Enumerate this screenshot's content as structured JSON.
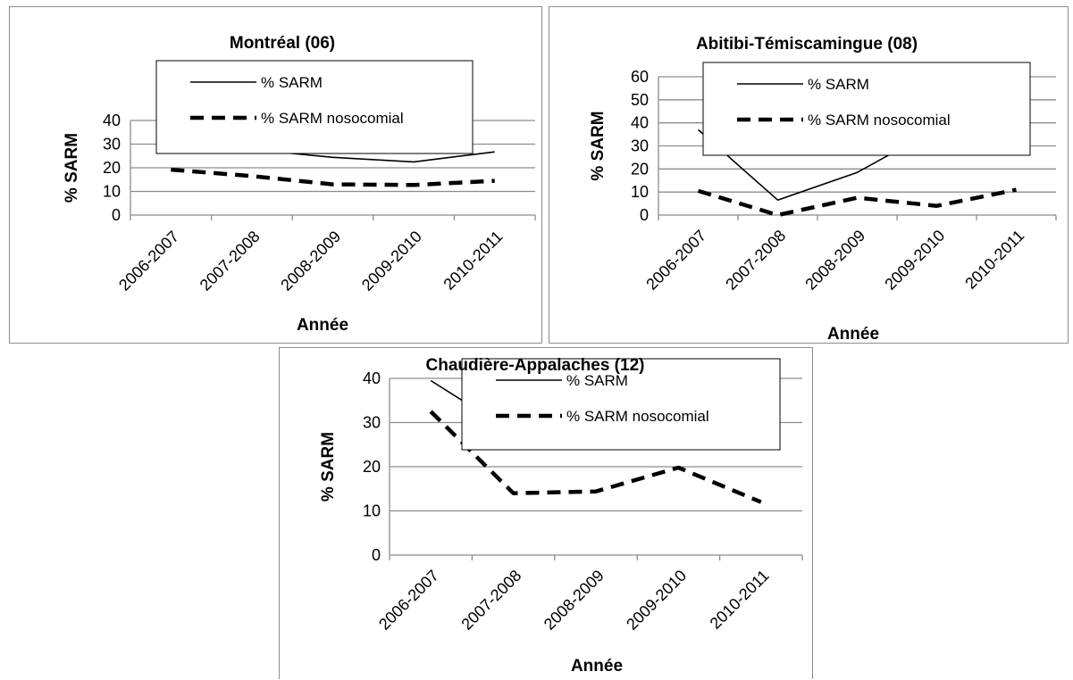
{
  "chart_data": [
    {
      "type": "line",
      "title": "Montréal (06)",
      "xlabel": "Année",
      "ylabel": "% SARM",
      "categories": [
        "2006-2007",
        "2007-2008",
        "2008-2009",
        "2009-2010",
        "2010-2011"
      ],
      "ylim": [
        0,
        40
      ],
      "yticks": [
        "0",
        "10",
        "20",
        "30",
        "40"
      ],
      "grid": true,
      "legend": "top-center",
      "series": [
        {
          "name": "% SARM",
          "values": [
            30.2,
            27.7,
            24.4,
            22.5,
            26.7
          ],
          "style": "solid"
        },
        {
          "name": "% SARM nosocomial",
          "values": [
            19.2,
            16.5,
            13.0,
            12.7,
            14.5
          ],
          "style": "dashed"
        }
      ]
    },
    {
      "type": "line",
      "title": "Abitibi-Témiscamingue (08)",
      "xlabel": "Année",
      "ylabel": "% SARM",
      "categories": [
        "2006-2007",
        "2007-2008",
        "2008-2009",
        "2009-2010",
        "2010-2011"
      ],
      "ylim": [
        0,
        60
      ],
      "yticks": [
        "0",
        "10",
        "20",
        "30",
        "40",
        "50",
        "60"
      ],
      "grid": true,
      "legend": "top-center",
      "series": [
        {
          "name": "% SARM",
          "values": [
            37.0,
            6.5,
            18.5,
            37.5,
            32.0
          ],
          "style": "solid"
        },
        {
          "name": "% SARM nosocomial",
          "values": [
            10.5,
            0.0,
            7.5,
            4.0,
            11.0
          ],
          "style": "dashed"
        }
      ]
    },
    {
      "type": "line",
      "title": "Chaudière-Appalaches (12)",
      "xlabel": "Année",
      "ylabel": "% SARM",
      "categories": [
        "2006-2007",
        "2007-2008",
        "2008-2009",
        "2009-2010",
        "2010-2011"
      ],
      "ylim": [
        0,
        40
      ],
      "yticks": [
        "0",
        "10",
        "20",
        "30",
        "40"
      ],
      "grid": true,
      "legend": "top-center",
      "series": [
        {
          "name": "% SARM",
          "values": [
            39.5,
            27.7,
            27.0,
            31.2,
            24.0
          ],
          "style": "solid"
        },
        {
          "name": "% SARM nosocomial",
          "values": [
            32.5,
            14.0,
            14.4,
            19.8,
            12.0
          ],
          "style": "dashed"
        }
      ]
    }
  ],
  "colors": {
    "line": "#000000",
    "grid": "#8c8c8c",
    "axis": "#8c8c8c",
    "border": "#8c8c8c"
  }
}
